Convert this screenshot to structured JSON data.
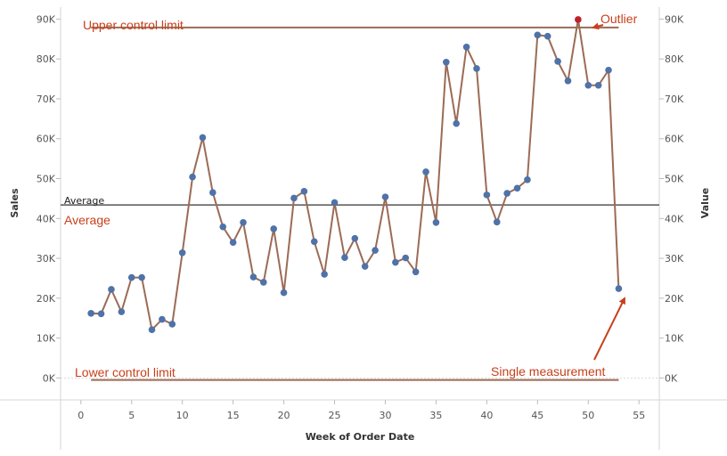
{
  "chart_data": {
    "type": "line",
    "title": "",
    "xlabel": "Week of Order Date",
    "ylabel": "Sales",
    "y2label": "Value",
    "xlim": [
      -2,
      57
    ],
    "ylim": [
      -5500,
      93000
    ],
    "xticks": [
      0,
      5,
      10,
      15,
      20,
      25,
      30,
      35,
      40,
      45,
      50,
      55
    ],
    "yticks": [
      0,
      10000,
      20000,
      30000,
      40000,
      50000,
      60000,
      70000,
      80000,
      90000
    ],
    "ytick_labels": [
      "0K",
      "10K",
      "20K",
      "30K",
      "40K",
      "50K",
      "60K",
      "70K",
      "80K",
      "90K"
    ],
    "grid": false,
    "series": [
      {
        "color": "#9c6b55",
        "marker_color": "#4f72a8",
        "x": [
          1,
          2,
          3,
          4,
          5,
          6,
          7,
          8,
          9,
          10,
          11,
          12,
          13,
          14,
          15,
          16,
          17,
          18,
          19,
          20,
          21,
          22,
          23,
          24,
          25,
          26,
          27,
          28,
          29,
          30,
          31,
          32,
          33,
          34,
          35,
          36,
          37,
          38,
          39,
          40,
          41,
          42,
          43,
          44,
          45,
          46,
          47,
          48,
          49,
          50,
          51,
          52,
          53
        ],
        "y": [
          16200,
          16100,
          22200,
          16600,
          25200,
          25200,
          12100,
          14700,
          13500,
          31400,
          50400,
          60300,
          46500,
          37900,
          34000,
          39000,
          25300,
          24000,
          37400,
          21400,
          45100,
          46800,
          34200,
          26000,
          44000,
          30200,
          35000,
          28000,
          32000,
          45400,
          29000,
          30100,
          26600,
          51700,
          39000,
          79200,
          63800,
          83000,
          77600,
          45900,
          39100,
          46300,
          47600,
          49700,
          86000,
          85700,
          79400,
          74500,
          89900,
          73400,
          73400,
          77200,
          22400
        ]
      }
    ],
    "reference_lines": {
      "upper_control_limit": 87900,
      "average": 43400,
      "lower_control_limit": -500,
      "line_color": "#9c6b55",
      "average_color": "#555555",
      "average_label": "Average"
    },
    "annotations": {
      "upper_control_limit": "Upper control limit",
      "average": "Average",
      "lower_control_limit": "Lower control limit",
      "outlier": "Outlier",
      "single_measurement": "Single measurement",
      "outlier_point": {
        "x": 49,
        "y": 89900
      },
      "single_point": {
        "x": 53,
        "y": 22400
      },
      "color": "#c8401c",
      "outlier_marker_color": "#c0202a"
    }
  }
}
